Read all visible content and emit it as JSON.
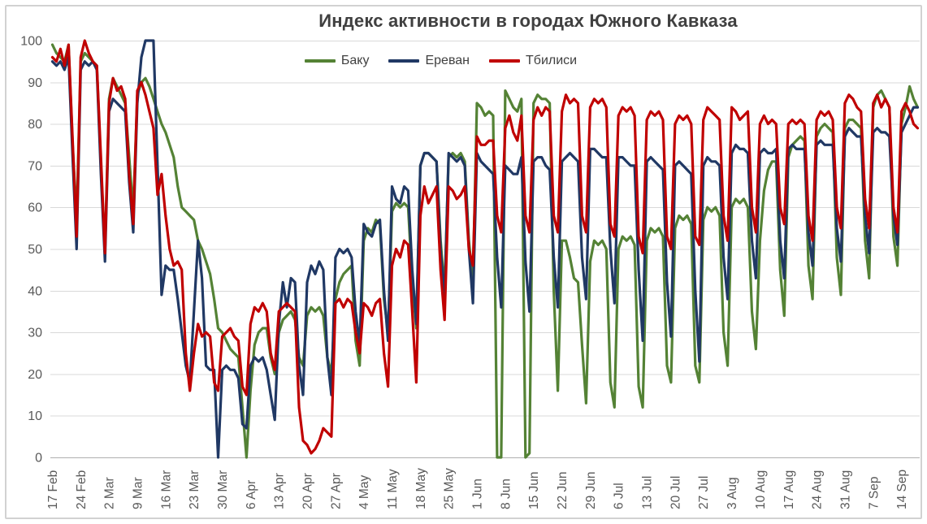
{
  "chart_data": {
    "type": "line",
    "title": "Индекс активности в городах Южного Кавказа",
    "xlabel": "",
    "ylabel": "",
    "ylim": [
      0,
      100
    ],
    "ytick_step": 10,
    "yticks": [
      0,
      10,
      20,
      30,
      40,
      50,
      60,
      70,
      80,
      90,
      100
    ],
    "grid": "horizontal",
    "legend_position": "top-center",
    "x_unit": "day",
    "x_start_label": "17 Feb",
    "x_tick_every_n_points": 7,
    "x_labels": [
      "17 Feb",
      "24 Feb",
      "2 Mar",
      "9 Mar",
      "16 Mar",
      "23 Mar",
      "30 Mar",
      "6 Apr",
      "13 Apr",
      "20 Apr",
      "27 Apr",
      "4 May",
      "11 May",
      "18 May",
      "25 May",
      "1 Jun",
      "8 Jun",
      "15 Jun",
      "22 Jun",
      "29 Jun",
      "6 Jul",
      "13 Jul",
      "20 Jul",
      "27 Jul",
      "3 Aug",
      "10 Aug",
      "17 Aug",
      "24 Aug",
      "31 Aug",
      "7 Sep",
      "14 Sep"
    ],
    "colors": {
      "grid": "#d9d9d9",
      "axis": "#b0b0b0",
      "tick_text": "#595959",
      "title_text": "#404040",
      "background": "#ffffff",
      "border": "#d2d2d2"
    },
    "series": [
      {
        "name": "Баку",
        "color": "#548235",
        "values": [
          99,
          97,
          96,
          95,
          99,
          75,
          57,
          95,
          97,
          96,
          95,
          94,
          70,
          50,
          86,
          91,
          89,
          87,
          85,
          72,
          59,
          87,
          90,
          91,
          89,
          86,
          83,
          80,
          78,
          75,
          72,
          65,
          60,
          59,
          58,
          57,
          52,
          50,
          47,
          44,
          38,
          31,
          30,
          28,
          26,
          25,
          24,
          12,
          0,
          16,
          27,
          30,
          31,
          31,
          24,
          20,
          30,
          33,
          34,
          35,
          33,
          24,
          22,
          34,
          36,
          35,
          36,
          34,
          24,
          20,
          38,
          42,
          44,
          45,
          46,
          28,
          22,
          52,
          55,
          54,
          57,
          56,
          38,
          30,
          59,
          61,
          60,
          61,
          60,
          42,
          31,
          70,
          73,
          73,
          72,
          71,
          52,
          40,
          72,
          73,
          72,
          73,
          71,
          52,
          42,
          85,
          84,
          82,
          83,
          82,
          0,
          0,
          88,
          86,
          84,
          83,
          86,
          0,
          1,
          85,
          87,
          86,
          86,
          85,
          40,
          16,
          52,
          52,
          48,
          43,
          42,
          27,
          13,
          47,
          52,
          51,
          52,
          50,
          18,
          12,
          50,
          53,
          52,
          53,
          51,
          17,
          12,
          52,
          55,
          54,
          55,
          53,
          22,
          18,
          55,
          58,
          57,
          58,
          56,
          22,
          18,
          57,
          60,
          59,
          60,
          58,
          30,
          22,
          60,
          62,
          61,
          62,
          60,
          35,
          26,
          52,
          64,
          69,
          71,
          71,
          45,
          34,
          72,
          75,
          76,
          77,
          76,
          46,
          38,
          77,
          79,
          80,
          79,
          78,
          48,
          39,
          79,
          81,
          81,
          80,
          79,
          52,
          43,
          84,
          87,
          88,
          86,
          84,
          53,
          46,
          80,
          84,
          89,
          86,
          84
        ]
      },
      {
        "name": "Ереван",
        "color": "#203864",
        "values": [
          95,
          94,
          95,
          93,
          96,
          72,
          50,
          93,
          95,
          94,
          95,
          93,
          68,
          47,
          83,
          86,
          85,
          84,
          83,
          66,
          54,
          85,
          96,
          100,
          100,
          100,
          70,
          39,
          46,
          45,
          45,
          38,
          30,
          22,
          18,
          35,
          52,
          43,
          22,
          21,
          21,
          0,
          21,
          22,
          21,
          21,
          19,
          8,
          7,
          22,
          24,
          23,
          24,
          21,
          15,
          9,
          32,
          42,
          36,
          43,
          42,
          22,
          15,
          42,
          46,
          44,
          47,
          45,
          24,
          15,
          48,
          50,
          49,
          50,
          48,
          35,
          27,
          56,
          54,
          53,
          56,
          57,
          40,
          28,
          65,
          62,
          61,
          65,
          64,
          45,
          32,
          70,
          73,
          73,
          72,
          71,
          50,
          38,
          73,
          72,
          71,
          72,
          70,
          50,
          37,
          73,
          71,
          70,
          69,
          68,
          48,
          36,
          70,
          69,
          68,
          68,
          72,
          47,
          35,
          71,
          72,
          72,
          70,
          69,
          48,
          36,
          71,
          72,
          73,
          72,
          71,
          48,
          38,
          74,
          74,
          73,
          72,
          72,
          50,
          37,
          72,
          72,
          71,
          70,
          70,
          45,
          28,
          71,
          72,
          71,
          70,
          69,
          42,
          29,
          70,
          71,
          70,
          69,
          68,
          40,
          23,
          70,
          72,
          71,
          71,
          70,
          48,
          38,
          73,
          75,
          74,
          74,
          73,
          52,
          43,
          73,
          74,
          73,
          73,
          74,
          52,
          43,
          74,
          75,
          74,
          74,
          74,
          54,
          46,
          75,
          76,
          75,
          75,
          75,
          55,
          47,
          77,
          79,
          78,
          77,
          77,
          58,
          49,
          78,
          79,
          78,
          78,
          77,
          58,
          51,
          78,
          80,
          82,
          84,
          84
        ]
      },
      {
        "name": "Тбилиси",
        "color": "#c00000",
        "values": [
          96,
          95,
          98,
          94,
          99,
          76,
          53,
          96,
          100,
          97,
          95,
          94,
          72,
          49,
          85,
          91,
          88,
          89,
          86,
          68,
          56,
          88,
          90,
          87,
          83,
          79,
          63,
          68,
          58,
          50,
          46,
          47,
          45,
          25,
          16,
          25,
          32,
          29,
          30,
          29,
          18,
          16,
          29,
          30,
          31,
          29,
          28,
          17,
          15,
          32,
          36,
          35,
          37,
          35,
          25,
          21,
          35,
          36,
          37,
          36,
          35,
          12,
          4,
          3,
          1,
          2,
          4,
          7,
          6,
          5,
          37,
          38,
          36,
          38,
          37,
          30,
          25,
          37,
          36,
          34,
          37,
          38,
          25,
          17,
          46,
          50,
          48,
          52,
          51,
          35,
          18,
          58,
          65,
          61,
          63,
          65,
          45,
          33,
          65,
          64,
          62,
          63,
          65,
          50,
          46,
          77,
          75,
          75,
          76,
          76,
          58,
          54,
          79,
          82,
          78,
          76,
          82,
          58,
          54,
          81,
          84,
          82,
          84,
          83,
          58,
          54,
          83,
          87,
          85,
          86,
          85,
          58,
          54,
          84,
          86,
          85,
          86,
          84,
          56,
          53,
          82,
          84,
          83,
          84,
          82,
          53,
          49,
          81,
          83,
          82,
          83,
          81,
          53,
          50,
          80,
          82,
          81,
          82,
          80,
          53,
          51,
          81,
          84,
          83,
          82,
          81,
          58,
          52,
          84,
          83,
          81,
          82,
          83,
          60,
          54,
          80,
          82,
          80,
          81,
          80,
          60,
          56,
          80,
          81,
          80,
          81,
          80,
          58,
          52,
          81,
          83,
          82,
          83,
          81,
          60,
          55,
          85,
          87,
          86,
          84,
          83,
          62,
          55,
          85,
          87,
          84,
          86,
          84,
          60,
          54,
          83,
          85,
          83,
          80,
          79
        ]
      }
    ]
  }
}
